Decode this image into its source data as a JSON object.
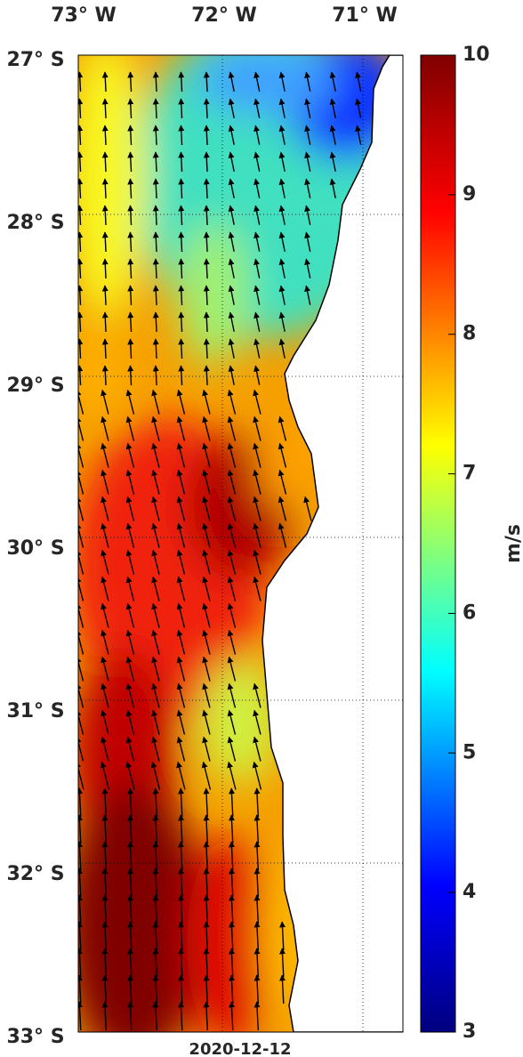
{
  "map": {
    "lon_labels": [
      "73° W",
      "72° W",
      "71° W"
    ],
    "lat_labels": [
      "27° S",
      "28° S",
      "29° S",
      "30° S",
      "31° S",
      "32° S",
      "33° S"
    ],
    "date": "2020-12-12"
  },
  "colorbar": {
    "label": "m/s",
    "lim": [
      3,
      10
    ],
    "ticks": [
      3,
      4,
      5,
      6,
      7,
      8,
      9,
      10
    ]
  }
}
